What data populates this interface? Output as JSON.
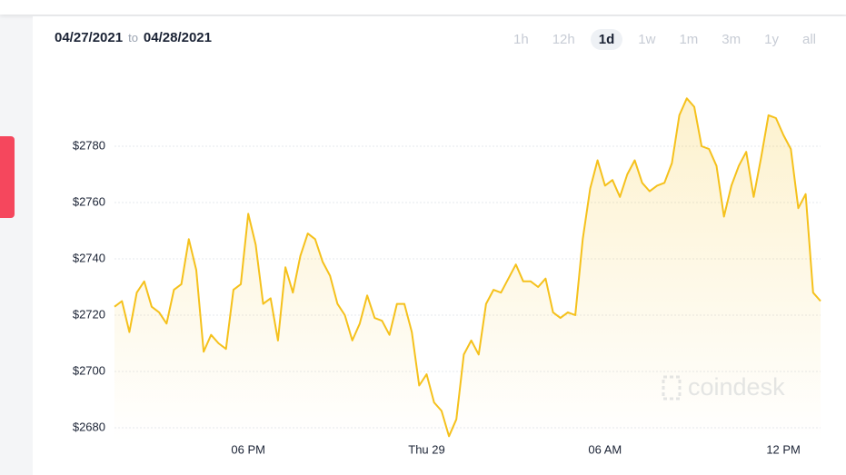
{
  "chart_data": {
    "type": "line",
    "date_from": "04/27/2021",
    "range_separator": "to",
    "date_to": "04/28/2021",
    "ranges": [
      "1h",
      "12h",
      "1d",
      "1w",
      "1m",
      "3m",
      "1y",
      "all"
    ],
    "selected_range": "1d",
    "watermark": "coindesk",
    "categories": [
      null,
      null,
      null,
      null,
      null,
      null,
      null,
      null,
      null,
      null,
      null,
      null,
      null,
      null,
      null,
      null,
      null,
      null,
      "06 PM",
      null,
      null,
      null,
      null,
      null,
      null,
      null,
      null,
      null,
      null,
      null,
      null,
      null,
      null,
      null,
      null,
      null,
      null,
      null,
      null,
      null,
      null,
      null,
      "Thu 29",
      null,
      null,
      null,
      null,
      null,
      null,
      null,
      null,
      null,
      null,
      null,
      null,
      null,
      null,
      null,
      null,
      null,
      null,
      null,
      null,
      null,
      null,
      null,
      "06 AM",
      null,
      null,
      null,
      null,
      null,
      null,
      null,
      null,
      null,
      null,
      null,
      null,
      null,
      null,
      null,
      null,
      null,
      null,
      null,
      null,
      null,
      null,
      null,
      "12 PM",
      null,
      null,
      null,
      null,
      null
    ],
    "series": [
      {
        "color": "#f5c11c",
        "values": [
          2723,
          2725,
          2714,
          2728,
          2732,
          2723,
          2721,
          2717,
          2729,
          2731,
          2747,
          2736,
          2707,
          2713,
          2710,
          2708,
          2729,
          2731,
          2756,
          2745,
          2724,
          2726,
          2711,
          2737,
          2728,
          2741,
          2749,
          2747,
          2739,
          2734,
          2724,
          2720,
          2711,
          2717,
          2727,
          2719,
          2718,
          2713,
          2724,
          2724,
          2714,
          2695,
          2699,
          2689,
          2686,
          2677,
          2683,
          2706,
          2711,
          2706,
          2724,
          2729,
          2728,
          2733,
          2738,
          2732,
          2732,
          2730,
          2733,
          2721,
          2719,
          2721,
          2720,
          2747,
          2765,
          2775,
          2766,
          2768,
          2762,
          2770,
          2775,
          2767,
          2764,
          2766,
          2767,
          2774,
          2791,
          2797,
          2794,
          2780,
          2779,
          2773,
          2755,
          2766,
          2773,
          2778,
          2762,
          2776,
          2791,
          2790,
          2784,
          2779,
          2758,
          2763,
          2728,
          2725
        ]
      }
    ],
    "ylim": [
      2675,
      2800
    ],
    "yticks": [
      {
        "value": 2680,
        "label": "$2680"
      },
      {
        "value": 2700,
        "label": "$2700"
      },
      {
        "value": 2720,
        "label": "$2720"
      },
      {
        "value": 2740,
        "label": "$2740"
      },
      {
        "value": 2760,
        "label": "$2760"
      },
      {
        "value": 2780,
        "label": "$2780"
      }
    ],
    "grid": true
  }
}
